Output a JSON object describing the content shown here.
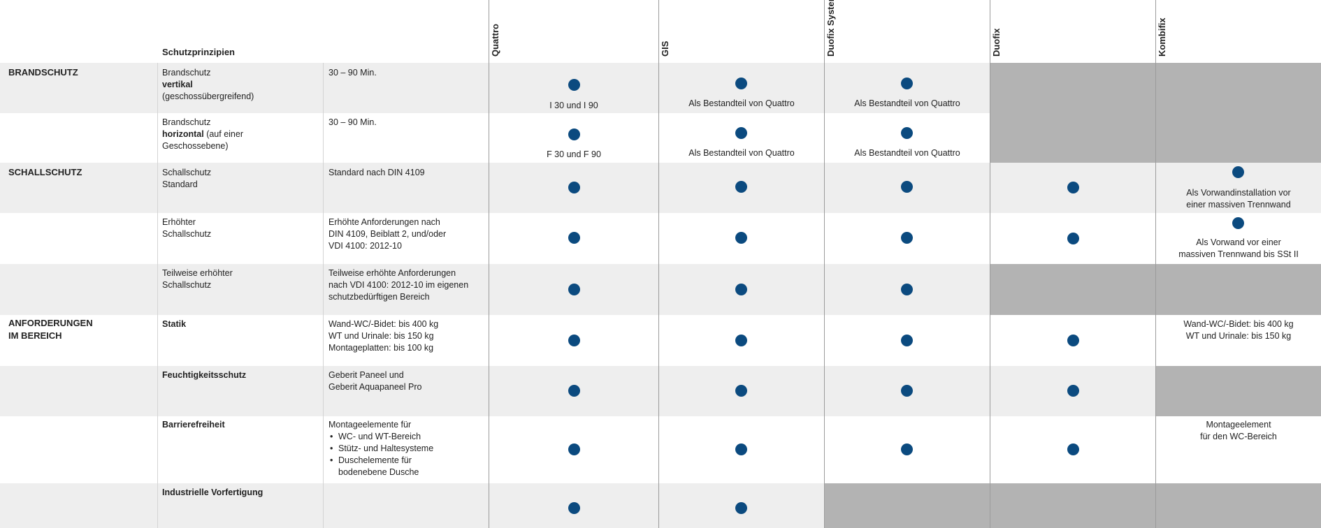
{
  "header": {
    "principles_label": "Schutzprinzipien",
    "columns": [
      "Quattro",
      "GIS",
      "Duofix System",
      "Duofix",
      "Kombifix"
    ]
  },
  "sections": {
    "brand": "BRANDSCHUTZ",
    "schall": "SCHALLSCHUTZ",
    "anf_line1": "ANFORDERUNGEN",
    "anf_line2": "IM BEREICH"
  },
  "rows": {
    "r1": {
      "p_line1": "Brandschutz",
      "p_bold": "vertikal",
      "p_line3": "(geschossübergreifend)",
      "desc": "30 – 90 Min.",
      "quattro_note": "I 30 und I 90",
      "gis_note": "Als Bestandteil von Quattro",
      "duofix_sys_note": "Als Bestandteil von Quattro"
    },
    "r2": {
      "p_line1": "Brandschutz",
      "p_bold": "horizontal",
      "p_rest": " (auf einer",
      "p_line3": "Geschossebene)",
      "desc": "30 – 90 Min.",
      "quattro_note": "F 30 und F 90",
      "gis_note": "Als Bestandteil von Quattro",
      "duofix_sys_note": "Als Bestandteil von Quattro"
    },
    "r3": {
      "p_line1": "Schallschutz",
      "p_line2": "Standard",
      "desc": "Standard nach DIN 4109",
      "kombifix_note1": "Als Vorwandinstallation vor",
      "kombifix_note2": "einer massiven Trennwand"
    },
    "r4": {
      "p_line1": "Erhöhter",
      "p_line2": "Schallschutz",
      "desc1": "Erhöhte Anforderungen nach",
      "desc2": "DIN 4109, Beiblatt 2, und/oder",
      "desc3": "VDI 4100: 2012-10",
      "kombifix_note1": "Als Vorwand vor einer",
      "kombifix_note2": "massiven Trennwand bis SSt II"
    },
    "r5": {
      "p_line1": "Teilweise erhöhter",
      "p_line2": "Schallschutz",
      "desc1": "Teilweise erhöhte Anforderungen",
      "desc2": "nach VDI 4100: 2012-10 im eigenen",
      "desc3": "schutzbedürftigen Bereich"
    },
    "r6": {
      "p_bold": "Statik",
      "desc1": "Wand-WC/-Bidet: bis 400 kg",
      "desc2": "WT und Urinale: bis 150 kg",
      "desc3": "Montageplatten: bis 100 kg",
      "kombifix_note1": "Wand-WC/-Bidet: bis 400 kg",
      "kombifix_note2": "WT und Urinale: bis 150 kg"
    },
    "r7": {
      "p_bold": "Feuchtigkeitsschutz",
      "desc1": "Geberit Paneel und",
      "desc2": "Geberit Aquapaneel Pro"
    },
    "r8": {
      "p_bold": "Barrierefreiheit",
      "desc_intro": "Montageelemente für",
      "bullets": [
        "WC- und WT-Bereich",
        "Stütz- und Haltesysteme",
        "Duschelemente für bodenebene Dusche"
      ],
      "kombifix_note1": "Montageelement",
      "kombifix_note2": "für den WC-Bereich"
    },
    "r9": {
      "p_bold": "Industrielle Vorfertigung"
    }
  },
  "colors": {
    "dot": "#0b4a7f",
    "not_available": "#b3b3b3",
    "stripe": "#eeeeee"
  }
}
